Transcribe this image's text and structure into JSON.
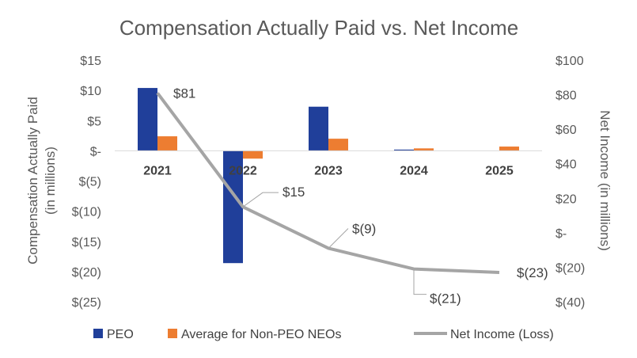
{
  "chart_data": {
    "type": "bar",
    "title": "Compensation Actually Paid vs. Net Income",
    "categories": [
      "2021",
      "2022",
      "2023",
      "2024",
      "2025"
    ],
    "y_left": {
      "label": "Compensation Actually Paid (in millions)",
      "label_lines": [
        "Compensation Actually Paid",
        "(in millions)"
      ],
      "ylim": [
        -25,
        15
      ],
      "ticks": [
        15,
        10,
        5,
        0,
        -5,
        -10,
        -15,
        -20,
        -25
      ],
      "tick_labels": [
        "$15",
        "$10",
        "$5",
        "$-",
        "$(5)",
        "$(10)",
        "$(15)",
        "$(20)",
        "$(25)"
      ]
    },
    "y_right": {
      "label": "Net Income (in millions)",
      "ylim": [
        -40,
        100
      ],
      "ticks": [
        100,
        80,
        60,
        40,
        20,
        0,
        -20,
        -40
      ],
      "tick_labels": [
        "$100",
        "$80",
        "$60",
        "$40",
        "$20",
        "$-",
        "$(20)",
        "$(40)"
      ]
    },
    "series": [
      {
        "name": "PEO",
        "type": "bar",
        "axis": "left",
        "color": "#203f9a",
        "values": [
          10.4,
          -18.6,
          7.3,
          0.2,
          0.0
        ]
      },
      {
        "name": "Average for Non-PEO NEOs",
        "type": "bar",
        "axis": "left",
        "color": "#ed7d31",
        "values": [
          2.4,
          -1.3,
          2.0,
          0.4,
          0.7
        ]
      },
      {
        "name": "Net Income (Loss)",
        "type": "line",
        "axis": "right",
        "color": "#a5a5a5",
        "values": [
          81,
          15,
          -9,
          -21,
          -23
        ],
        "data_labels": [
          "$81",
          "$15",
          "$(9)",
          "$(21)",
          "$(23)"
        ]
      }
    ],
    "legend_position": "bottom",
    "grid": false
  }
}
